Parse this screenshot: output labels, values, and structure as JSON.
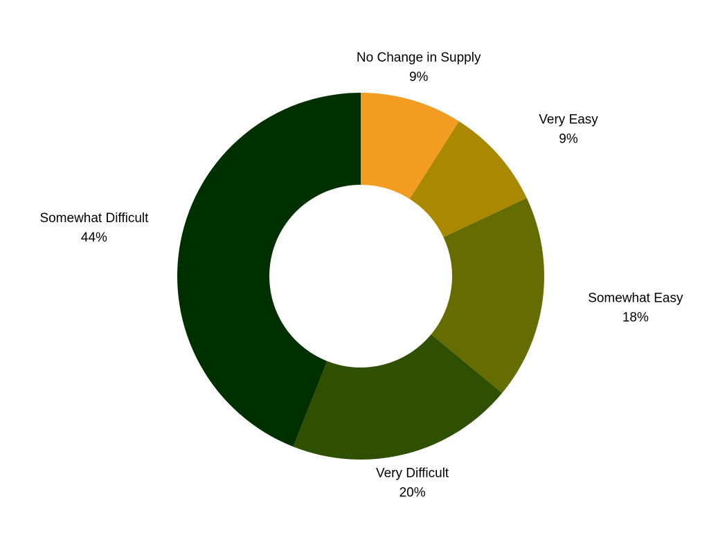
{
  "chart_data": {
    "type": "pie",
    "variant": "donut",
    "slices": [
      {
        "label": "No Change in Supply",
        "value": 9,
        "value_label": "9%",
        "color": "#F39C22"
      },
      {
        "label": "Very Easy",
        "value": 9,
        "value_label": "9%",
        "color": "#AA8800"
      },
      {
        "label": "Somewhat Easy",
        "value": 18,
        "value_label": "18%",
        "color": "#666D00"
      },
      {
        "label": "Very Difficult",
        "value": 20,
        "value_label": "20%",
        "color": "#2F5000"
      },
      {
        "label": "Somewhat Difficult",
        "value": 44,
        "value_label": "44%",
        "color": "#003000"
      }
    ],
    "start_angle": "top",
    "direction": "clockwise",
    "legend": "none",
    "data_labels": "outside"
  }
}
